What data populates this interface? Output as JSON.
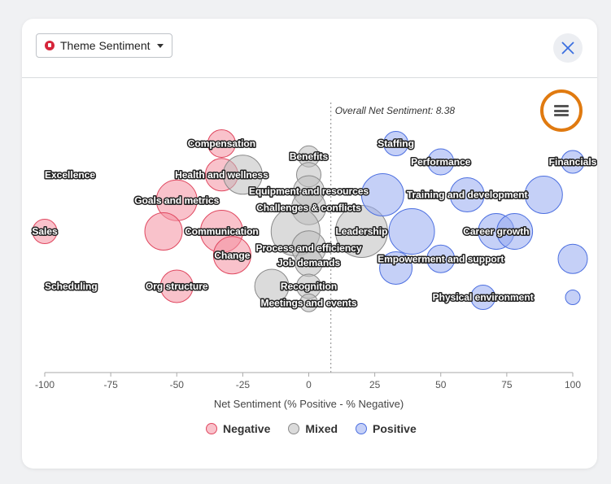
{
  "header": {
    "theme_label": "Theme Sentiment"
  },
  "colors": {
    "negative_fill": "rgba(244,143,160,0.55)",
    "negative_stroke": "#e0475f",
    "mixed_fill": "rgba(190,190,190,0.55)",
    "mixed_stroke": "#8a8a8a",
    "positive_fill": "rgba(150,170,240,0.55)",
    "positive_stroke": "#4c6fe0",
    "menu_ring": "#e07a10"
  },
  "legend": [
    {
      "label": "Negative",
      "key": "negative"
    },
    {
      "label": "Mixed",
      "key": "mixed"
    },
    {
      "label": "Positive",
      "key": "positive"
    }
  ],
  "chart_data": {
    "type": "scatter",
    "xlabel": "Net Sentiment (% Positive - % Negative)",
    "xlim": [
      -100,
      100
    ],
    "xticks": [
      -100,
      -75,
      -50,
      -25,
      0,
      25,
      50,
      75,
      100
    ],
    "reference_line": {
      "value": 8.38,
      "label": "Overall Net Sentiment: 8.38"
    },
    "series": [
      {
        "name": "Negative",
        "points": [
          {
            "x": -33,
            "row": 1.8,
            "size": 1.2,
            "label": "Compensation"
          },
          {
            "x": -33,
            "row": 3.5,
            "size": 1.5,
            "label": "Health and wellness"
          },
          {
            "x": -50,
            "row": 4.9,
            "size": 2.0,
            "label": "Goals and metrics"
          },
          {
            "x": -100,
            "row": 6.6,
            "size": 1.0,
            "label": "Sales"
          },
          {
            "x": -55,
            "row": 6.6,
            "size": 1.8,
            "label": ""
          },
          {
            "x": -33,
            "row": 6.6,
            "size": 2.1,
            "label": "Communication"
          },
          {
            "x": -29,
            "row": 7.9,
            "size": 1.8,
            "label": "Change"
          },
          {
            "x": -50,
            "row": 9.6,
            "size": 1.5,
            "label": "Org structure"
          }
        ]
      },
      {
        "name": "Mixed",
        "points": [
          {
            "x": 0,
            "row": 2.5,
            "size": 0.8,
            "label": "Benefits"
          },
          {
            "x": -25,
            "row": 3.5,
            "size": 1.9,
            "label": ""
          },
          {
            "x": 0,
            "row": 3.5,
            "size": 1.0,
            "label": ""
          },
          {
            "x": 0,
            "row": 4.4,
            "size": 1.4,
            "label": "Equipment and resources"
          },
          {
            "x": 0,
            "row": 5.3,
            "size": 1.6,
            "label": "Challenges & conflicts"
          },
          {
            "x": -5,
            "row": 6.6,
            "size": 2.5,
            "label": ""
          },
          {
            "x": 20,
            "row": 6.6,
            "size": 2.7,
            "label": "Leadership"
          },
          {
            "x": 0,
            "row": 7.5,
            "size": 1.6,
            "label": "Process and efficiency"
          },
          {
            "x": 0,
            "row": 8.3,
            "size": 1.2,
            "label": "Job demands"
          },
          {
            "x": -14,
            "row": 9.6,
            "size": 1.6,
            "label": ""
          },
          {
            "x": 0,
            "row": 9.6,
            "size": 1.0,
            "label": "Recognition"
          },
          {
            "x": 0,
            "row": 10.5,
            "size": 0.6,
            "label": "Meetings and events"
          }
        ]
      },
      {
        "name": "Positive",
        "points": [
          {
            "x": 33,
            "row": 1.8,
            "size": 1.0,
            "label": "Staffing"
          },
          {
            "x": 50,
            "row": 2.8,
            "size": 1.1,
            "label": "Performance"
          },
          {
            "x": 100,
            "row": 2.8,
            "size": 0.9,
            "label": "Financials"
          },
          {
            "x": 28,
            "row": 4.6,
            "size": 2.1,
            "label": ""
          },
          {
            "x": 60,
            "row": 4.6,
            "size": 1.6,
            "label": "Training and development"
          },
          {
            "x": 89,
            "row": 4.6,
            "size": 1.8,
            "label": ""
          },
          {
            "x": 39,
            "row": 6.6,
            "size": 2.3,
            "label": ""
          },
          {
            "x": 71,
            "row": 6.6,
            "size": 1.7,
            "label": "Career growth"
          },
          {
            "x": 78,
            "row": 6.6,
            "size": 1.7,
            "label": ""
          },
          {
            "x": 50,
            "row": 8.1,
            "size": 1.2,
            "label": "Empowerment and support"
          },
          {
            "x": 33,
            "row": 8.6,
            "size": 1.5,
            "label": ""
          },
          {
            "x": 100,
            "row": 8.1,
            "size": 1.3,
            "label": ""
          },
          {
            "x": 66,
            "row": 10.2,
            "size": 1.0,
            "label": "Physical environment"
          },
          {
            "x": 100,
            "row": 10.2,
            "size": 0.4,
            "label": ""
          }
        ]
      }
    ],
    "y_row_labels": [
      {
        "row": 3.5,
        "label": "Excellence"
      },
      {
        "row": 9.6,
        "label": "Scheduling"
      }
    ]
  }
}
